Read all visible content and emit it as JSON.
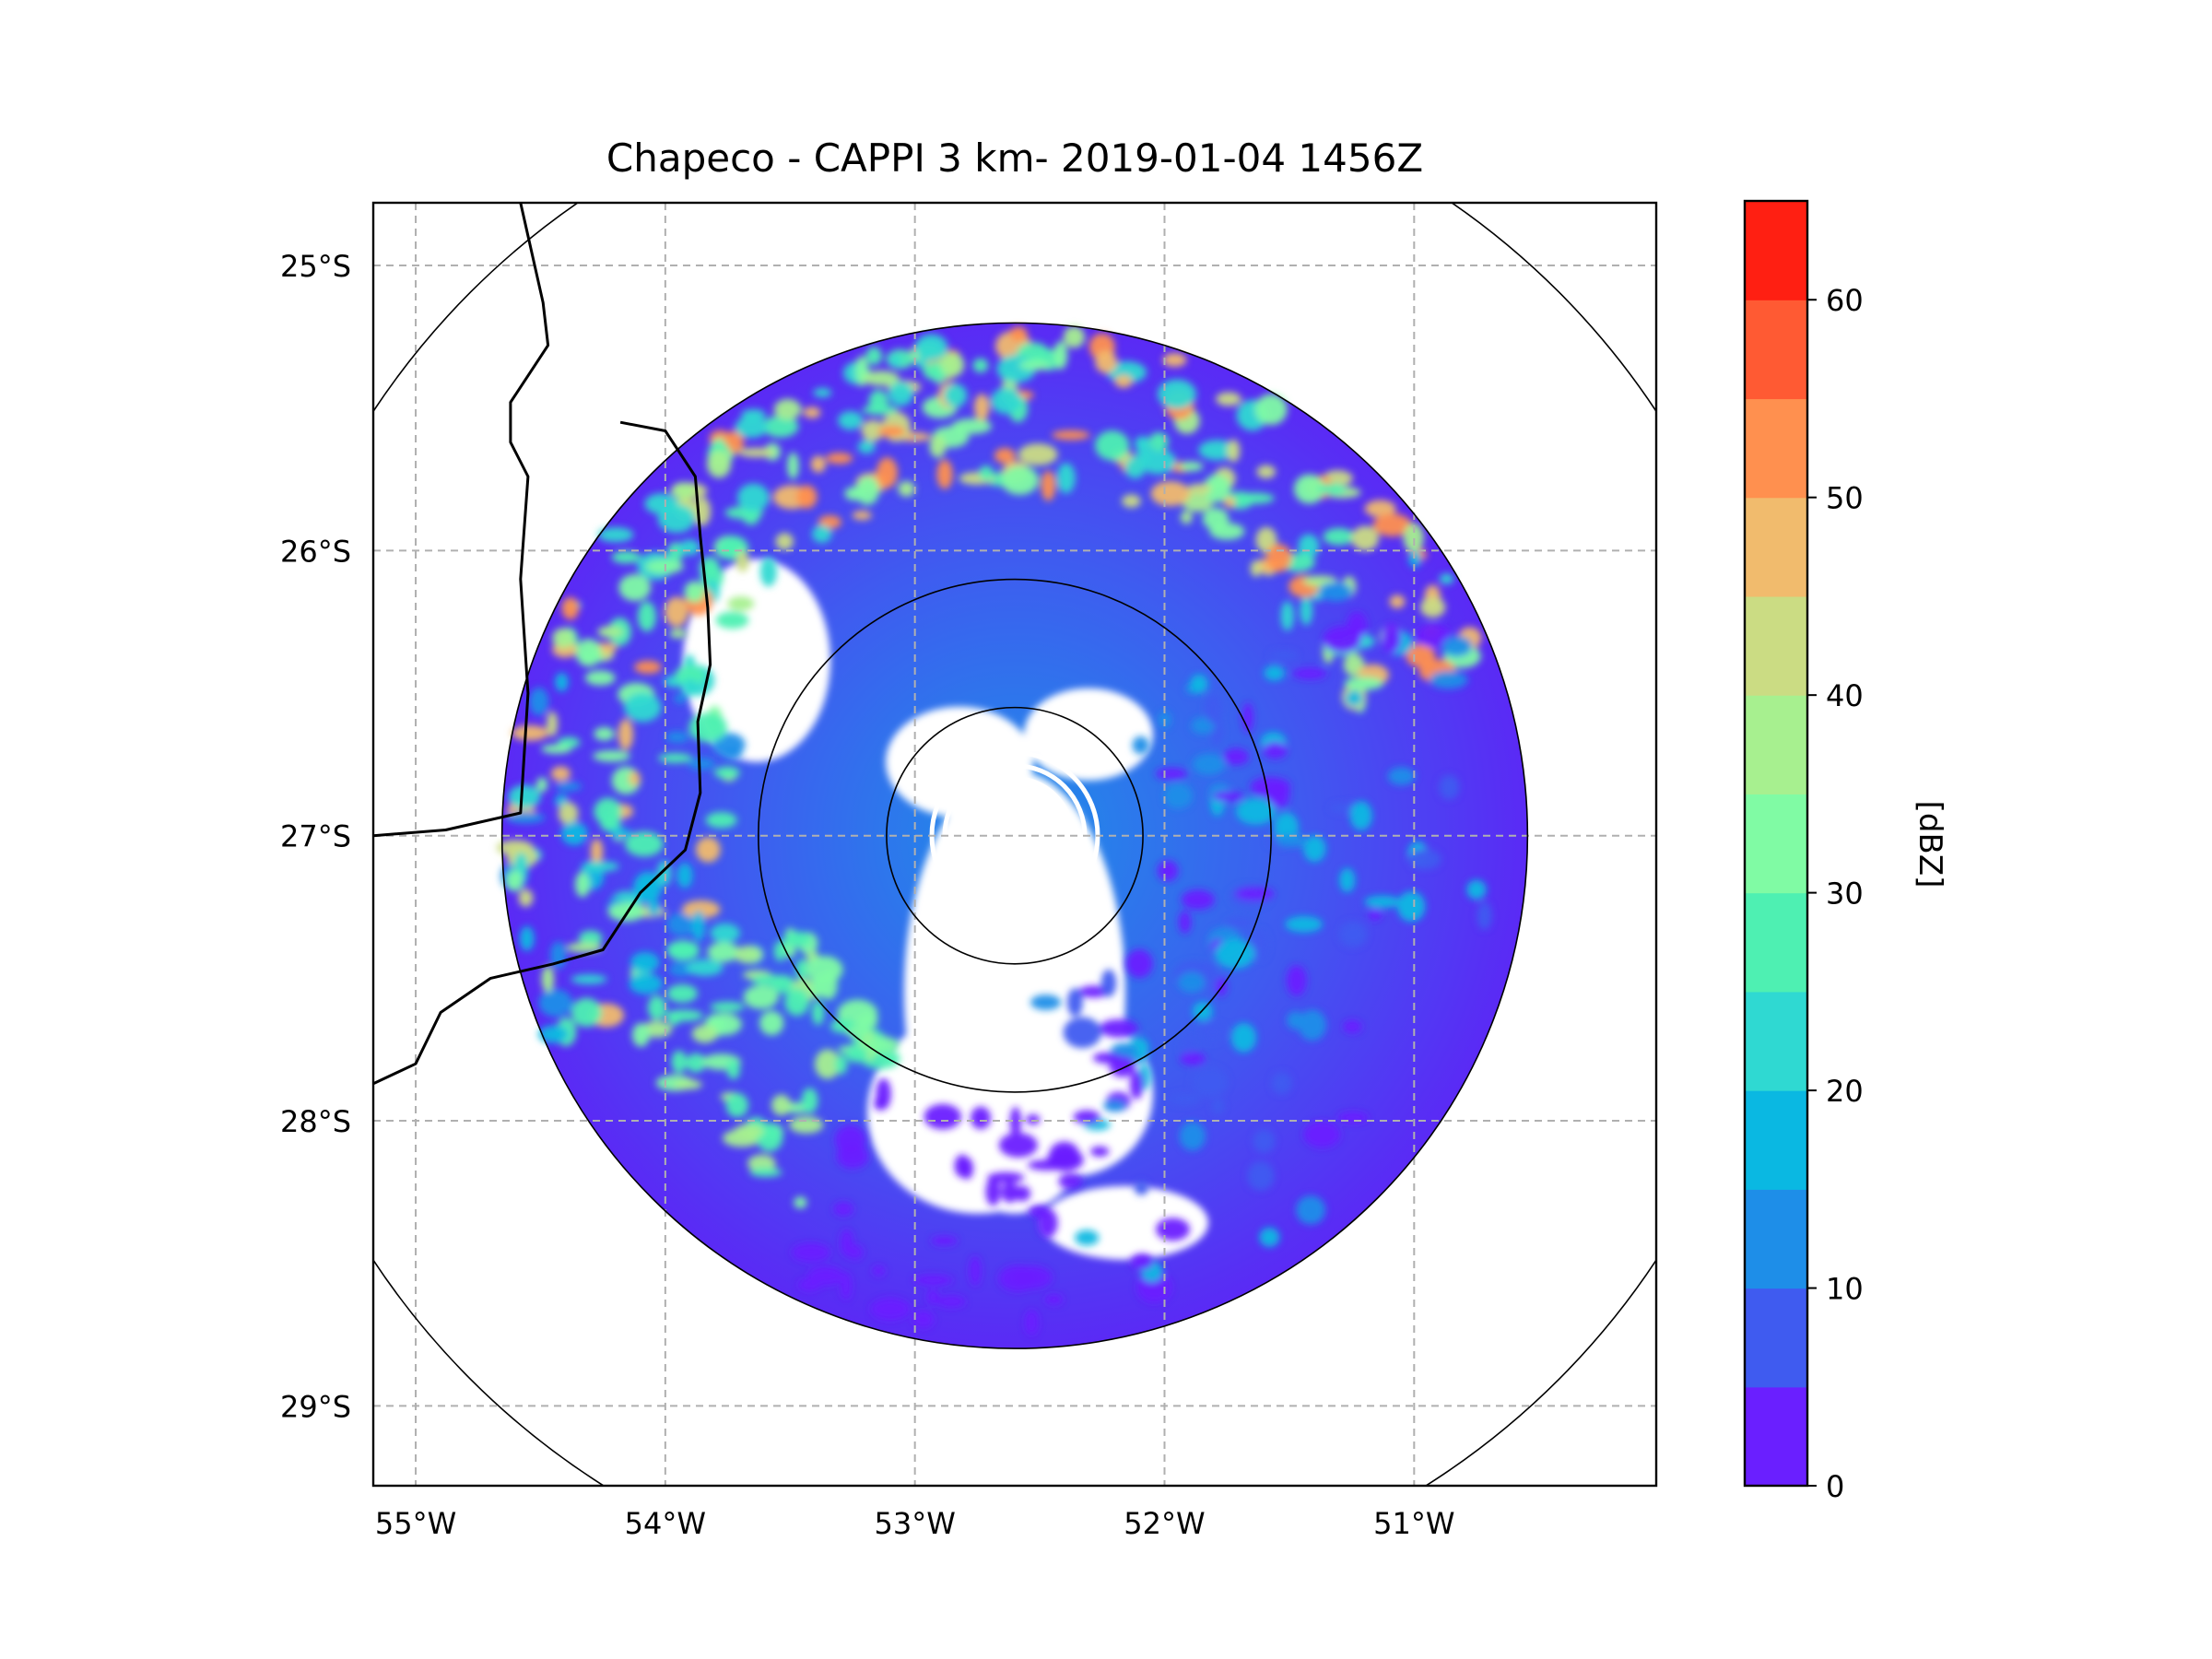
{
  "chart_data": {
    "type": "heatmap",
    "title": "Chapeco - CAPPI 3 km- 2019-01-04 1456Z",
    "xlabel": "",
    "ylabel": "",
    "x_ticks": [
      {
        "value": -55,
        "label": "55°W"
      },
      {
        "value": -54,
        "label": "54°W"
      },
      {
        "value": -53,
        "label": "53°W"
      },
      {
        "value": -52,
        "label": "52°W"
      },
      {
        "value": -51,
        "label": "51°W"
      }
    ],
    "y_ticks": [
      {
        "value": -25,
        "label": "25°S"
      },
      {
        "value": -26,
        "label": "26°S"
      },
      {
        "value": -27,
        "label": "27°S"
      },
      {
        "value": -28,
        "label": "28°S"
      },
      {
        "value": -29,
        "label": "29°S"
      }
    ],
    "xlim": [
      -55.17,
      -50.03
    ],
    "ylim": [
      -29.28,
      -24.78
    ],
    "grid": true,
    "grid_style": "dashed",
    "radar_site": {
      "lon": -52.6,
      "lat": -27.0
    },
    "range_rings_km": [
      50,
      100,
      200,
      300
    ],
    "data_range_km": 200,
    "colorbar": {
      "label": "[dBZ]",
      "min": 0,
      "max": 65,
      "step": 5,
      "ticks": [
        "0",
        "10",
        "20",
        "30",
        "40",
        "50",
        "60"
      ],
      "colors": [
        "#6a1fff",
        "#3f5bf0",
        "#1e8ee8",
        "#0ab8e2",
        "#2fd9d2",
        "#4ef0b2",
        "#80fba4",
        "#a7f08f",
        "#cbdc83",
        "#f1bb6d",
        "#ff904f",
        "#ff5a33",
        "#ff1f12"
      ]
    },
    "echo_regions": [
      {
        "area": "north-northeast arc",
        "dbz_range": [
          20,
          55
        ]
      },
      {
        "area": "west",
        "dbz_range": [
          10,
          50
        ]
      },
      {
        "area": "southwest",
        "dbz_range": [
          25,
          40
        ]
      },
      {
        "area": "east and southeast",
        "dbz_range": [
          0,
          20
        ]
      },
      {
        "area": "south",
        "dbz_range": [
          0,
          5
        ]
      }
    ],
    "country_borders": [
      {
        "name": "paraguay-argentina-brazil-border",
        "points": [
          [
            -54.58,
            -24.78
          ],
          [
            -54.49,
            -25.13
          ],
          [
            -54.47,
            -25.28
          ],
          [
            -54.62,
            -25.48
          ],
          [
            -54.62,
            -25.62
          ],
          [
            -54.55,
            -25.74
          ],
          [
            -54.58,
            -26.1
          ],
          [
            -54.55,
            -26.5
          ],
          [
            -54.58,
            -26.92
          ],
          [
            -54.88,
            -26.98
          ],
          [
            -55.17,
            -27.0
          ]
        ]
      },
      {
        "name": "argentina-brazil-border",
        "points": [
          [
            -54.18,
            -25.55
          ],
          [
            -54.0,
            -25.58
          ],
          [
            -53.88,
            -25.74
          ],
          [
            -53.86,
            -25.95
          ],
          [
            -53.83,
            -26.2
          ],
          [
            -53.82,
            -26.4
          ],
          [
            -53.87,
            -26.6
          ],
          [
            -53.86,
            -26.85
          ],
          [
            -53.92,
            -27.05
          ],
          [
            -54.1,
            -27.2
          ],
          [
            -54.25,
            -27.4
          ],
          [
            -54.45,
            -27.45
          ],
          [
            -54.7,
            -27.5
          ],
          [
            -54.9,
            -27.62
          ],
          [
            -55.0,
            -27.8
          ],
          [
            -55.17,
            -27.87
          ]
        ]
      }
    ]
  }
}
